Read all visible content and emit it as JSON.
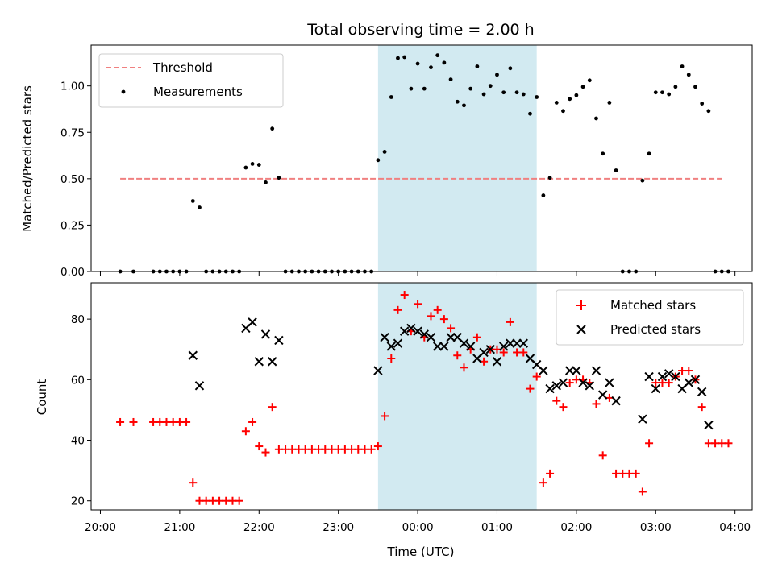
{
  "chart_data": [
    {
      "type": "scatter",
      "title": "Total observing time = 2.00 h",
      "ylabel": "Matched/Predicted stars",
      "ylim": [
        0,
        1.22
      ],
      "yticks": [
        "0.00",
        "0.25",
        "0.50",
        "0.75",
        "1.00"
      ],
      "shaded_region": {
        "from": "23:30",
        "to": "01:30",
        "color": "#add8e6"
      },
      "threshold": {
        "name": "Threshold",
        "value": 0.5,
        "from": "20:15",
        "to": "03:50",
        "color": "#f08080"
      },
      "legend": {
        "position": "top-left",
        "entries": [
          "Threshold",
          "Measurements"
        ]
      },
      "series": [
        {
          "name": "Measurements",
          "color": "#000000",
          "points": [
            [
              "20:15",
              0
            ],
            [
              "20:25",
              0
            ],
            [
              "20:40",
              0
            ],
            [
              "20:45",
              0
            ],
            [
              "20:50",
              0
            ],
            [
              "20:55",
              0
            ],
            [
              "21:00",
              0
            ],
            [
              "21:05",
              0
            ],
            [
              "21:10",
              0.38
            ],
            [
              "21:15",
              0.345
            ],
            [
              "21:20",
              0
            ],
            [
              "21:25",
              0
            ],
            [
              "21:30",
              0
            ],
            [
              "21:35",
              0
            ],
            [
              "21:40",
              0
            ],
            [
              "21:45",
              0
            ],
            [
              "21:50",
              0.56
            ],
            [
              "21:55",
              0.58
            ],
            [
              "22:00",
              0.575
            ],
            [
              "22:05",
              0.48
            ],
            [
              "22:10",
              0.77
            ],
            [
              "22:15",
              0.505
            ],
            [
              "22:20",
              0
            ],
            [
              "22:25",
              0
            ],
            [
              "22:30",
              0
            ],
            [
              "22:35",
              0
            ],
            [
              "22:40",
              0
            ],
            [
              "22:45",
              0
            ],
            [
              "22:50",
              0
            ],
            [
              "22:55",
              0
            ],
            [
              "23:00",
              0
            ],
            [
              "23:05",
              0
            ],
            [
              "23:10",
              0
            ],
            [
              "23:15",
              0
            ],
            [
              "23:20",
              0
            ],
            [
              "23:25",
              0
            ],
            [
              "23:30",
              0.6
            ],
            [
              "23:35",
              0.645
            ],
            [
              "23:40",
              0.94
            ],
            [
              "23:45",
              1.15
            ],
            [
              "23:50",
              1.155
            ],
            [
              "23:55",
              0.985
            ],
            [
              "00:00",
              1.12
            ],
            [
              "00:05",
              0.985
            ],
            [
              "00:10",
              1.1
            ],
            [
              "00:15",
              1.165
            ],
            [
              "00:20",
              1.125
            ],
            [
              "00:25",
              1.035
            ],
            [
              "00:30",
              0.915
            ],
            [
              "00:35",
              0.895
            ],
            [
              "00:40",
              0.985
            ],
            [
              "00:45",
              1.105
            ],
            [
              "00:50",
              0.955
            ],
            [
              "00:55",
              1.0
            ],
            [
              "01:00",
              1.06
            ],
            [
              "01:05",
              0.965
            ],
            [
              "01:10",
              1.095
            ],
            [
              "01:15",
              0.965
            ],
            [
              "01:20",
              0.955
            ],
            [
              "01:25",
              0.85
            ],
            [
              "01:30",
              0.94
            ],
            [
              "01:35",
              0.41
            ],
            [
              "01:40",
              0.505
            ],
            [
              "01:45",
              0.91
            ],
            [
              "01:50",
              0.865
            ],
            [
              "01:55",
              0.93
            ],
            [
              "02:00",
              0.95
            ],
            [
              "02:05",
              0.995
            ],
            [
              "02:10",
              1.03
            ],
            [
              "02:15",
              0.825
            ],
            [
              "02:20",
              0.635
            ],
            [
              "02:25",
              0.91
            ],
            [
              "02:30",
              0.545
            ],
            [
              "02:35",
              0
            ],
            [
              "02:40",
              0
            ],
            [
              "02:45",
              0
            ],
            [
              "02:50",
              0.49
            ],
            [
              "02:55",
              0.635
            ],
            [
              "03:00",
              0.965
            ],
            [
              "03:05",
              0.965
            ],
            [
              "03:10",
              0.955
            ],
            [
              "03:15",
              0.995
            ],
            [
              "03:20",
              1.105
            ],
            [
              "03:25",
              1.06
            ],
            [
              "03:30",
              0.995
            ],
            [
              "03:35",
              0.905
            ],
            [
              "03:40",
              0.865
            ],
            [
              "03:45",
              0
            ],
            [
              "03:50",
              0
            ],
            [
              "03:55",
              0
            ]
          ]
        }
      ]
    },
    {
      "type": "scatter",
      "xlabel": "Time (UTC)",
      "ylabel": "Count",
      "ylim": [
        17,
        92
      ],
      "yticks": [
        "20",
        "40",
        "60",
        "80"
      ],
      "xlim": [
        "19:53",
        "04:13"
      ],
      "xticks": [
        "20:00",
        "21:00",
        "22:00",
        "23:00",
        "00:00",
        "01:00",
        "02:00",
        "03:00",
        "04:00"
      ],
      "shaded_region": {
        "from": "23:30",
        "to": "01:30",
        "color": "#add8e6"
      },
      "legend": {
        "position": "top-right",
        "entries": [
          "Matched stars",
          "Predicted stars"
        ]
      },
      "series": [
        {
          "name": "Matched stars",
          "marker": "plus",
          "color": "#ff0000",
          "points": [
            [
              "20:15",
              46
            ],
            [
              "20:25",
              46
            ],
            [
              "20:40",
              46
            ],
            [
              "20:45",
              46
            ],
            [
              "20:50",
              46
            ],
            [
              "20:55",
              46
            ],
            [
              "21:00",
              46
            ],
            [
              "21:05",
              46
            ],
            [
              "21:10",
              26
            ],
            [
              "21:15",
              20
            ],
            [
              "21:20",
              20
            ],
            [
              "21:25",
              20
            ],
            [
              "21:30",
              20
            ],
            [
              "21:35",
              20
            ],
            [
              "21:40",
              20
            ],
            [
              "21:45",
              20
            ],
            [
              "21:50",
              43
            ],
            [
              "21:55",
              46
            ],
            [
              "22:00",
              38
            ],
            [
              "22:05",
              36
            ],
            [
              "22:10",
              51
            ],
            [
              "22:15",
              37
            ],
            [
              "22:20",
              37
            ],
            [
              "22:25",
              37
            ],
            [
              "22:30",
              37
            ],
            [
              "22:35",
              37
            ],
            [
              "22:40",
              37
            ],
            [
              "22:45",
              37
            ],
            [
              "22:50",
              37
            ],
            [
              "22:55",
              37
            ],
            [
              "23:00",
              37
            ],
            [
              "23:05",
              37
            ],
            [
              "23:10",
              37
            ],
            [
              "23:15",
              37
            ],
            [
              "23:20",
              37
            ],
            [
              "23:25",
              37
            ],
            [
              "23:30",
              38
            ],
            [
              "23:35",
              48
            ],
            [
              "23:40",
              67
            ],
            [
              "23:45",
              83
            ],
            [
              "23:50",
              88
            ],
            [
              "23:55",
              76
            ],
            [
              "00:00",
              85
            ],
            [
              "00:05",
              74
            ],
            [
              "00:10",
              81
            ],
            [
              "00:15",
              83
            ],
            [
              "00:20",
              80
            ],
            [
              "00:25",
              77
            ],
            [
              "00:30",
              68
            ],
            [
              "00:35",
              64
            ],
            [
              "00:40",
              70
            ],
            [
              "00:45",
              74
            ],
            [
              "00:50",
              66
            ],
            [
              "00:55",
              70
            ],
            [
              "01:00",
              70
            ],
            [
              "01:05",
              69
            ],
            [
              "01:10",
              79
            ],
            [
              "01:15",
              69
            ],
            [
              "01:20",
              69
            ],
            [
              "01:25",
              57
            ],
            [
              "01:30",
              61
            ],
            [
              "01:35",
              26
            ],
            [
              "01:40",
              29
            ],
            [
              "01:45",
              53
            ],
            [
              "01:50",
              51
            ],
            [
              "01:55",
              59
            ],
            [
              "02:00",
              60
            ],
            [
              "02:05",
              60
            ],
            [
              "02:10",
              59
            ],
            [
              "02:15",
              52
            ],
            [
              "02:20",
              35
            ],
            [
              "02:25",
              54
            ],
            [
              "02:30",
              29
            ],
            [
              "02:35",
              29
            ],
            [
              "02:40",
              29
            ],
            [
              "02:45",
              29
            ],
            [
              "02:50",
              23
            ],
            [
              "02:55",
              39
            ],
            [
              "03:00",
              59
            ],
            [
              "03:05",
              59
            ],
            [
              "03:10",
              59
            ],
            [
              "03:15",
              61
            ],
            [
              "03:20",
              63
            ],
            [
              "03:25",
              63
            ],
            [
              "03:30",
              60
            ],
            [
              "03:35",
              51
            ],
            [
              "03:40",
              39
            ],
            [
              "03:45",
              39
            ],
            [
              "03:50",
              39
            ],
            [
              "03:55",
              39
            ]
          ]
        },
        {
          "name": "Predicted stars",
          "marker": "x",
          "color": "#000000",
          "points": [
            [
              "21:10",
              68
            ],
            [
              "21:15",
              58
            ],
            [
              "21:50",
              77
            ],
            [
              "21:55",
              79
            ],
            [
              "22:00",
              66
            ],
            [
              "22:05",
              75
            ],
            [
              "22:10",
              66
            ],
            [
              "22:15",
              73
            ],
            [
              "23:30",
              63
            ],
            [
              "23:35",
              74
            ],
            [
              "23:40",
              71
            ],
            [
              "23:45",
              72
            ],
            [
              "23:50",
              76
            ],
            [
              "23:55",
              77
            ],
            [
              "00:00",
              76
            ],
            [
              "00:05",
              75
            ],
            [
              "00:10",
              74
            ],
            [
              "00:15",
              71
            ],
            [
              "00:20",
              71
            ],
            [
              "00:25",
              74
            ],
            [
              "00:30",
              74
            ],
            [
              "00:35",
              72
            ],
            [
              "00:40",
              71
            ],
            [
              "00:45",
              67
            ],
            [
              "00:50",
              69
            ],
            [
              "00:55",
              70
            ],
            [
              "01:00",
              66
            ],
            [
              "01:05",
              71
            ],
            [
              "01:10",
              72
            ],
            [
              "01:15",
              72
            ],
            [
              "01:20",
              72
            ],
            [
              "01:25",
              67
            ],
            [
              "01:30",
              65
            ],
            [
              "01:35",
              63
            ],
            [
              "01:40",
              57
            ],
            [
              "01:45",
              58
            ],
            [
              "01:50",
              59
            ],
            [
              "01:55",
              63
            ],
            [
              "02:00",
              63
            ],
            [
              "02:05",
              59
            ],
            [
              "02:10",
              58
            ],
            [
              "02:15",
              63
            ],
            [
              "02:20",
              55
            ],
            [
              "02:25",
              59
            ],
            [
              "02:30",
              53
            ],
            [
              "02:50",
              47
            ],
            [
              "02:55",
              61
            ],
            [
              "03:00",
              57
            ],
            [
              "03:05",
              61
            ],
            [
              "03:10",
              62
            ],
            [
              "03:15",
              61
            ],
            [
              "03:20",
              57
            ],
            [
              "03:25",
              59
            ],
            [
              "03:30",
              60
            ],
            [
              "03:35",
              56
            ],
            [
              "03:40",
              45
            ]
          ]
        }
      ]
    }
  ]
}
